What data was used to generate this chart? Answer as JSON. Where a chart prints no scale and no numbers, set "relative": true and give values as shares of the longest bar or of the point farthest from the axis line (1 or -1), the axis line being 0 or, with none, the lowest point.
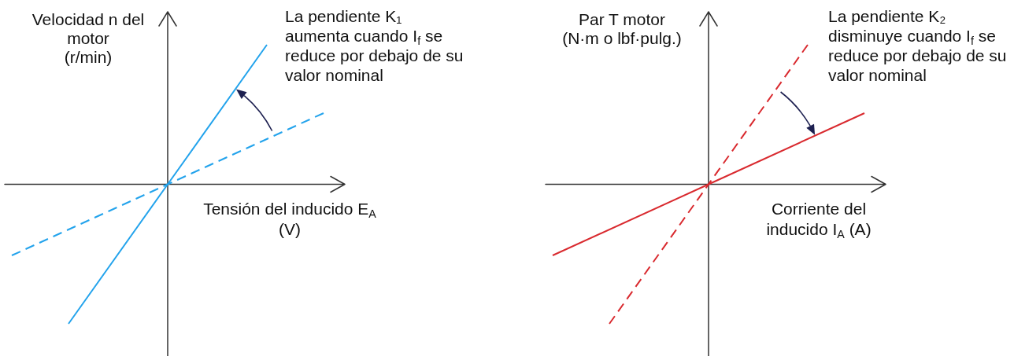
{
  "chart_data": [
    {
      "type": "line",
      "relative": true,
      "tick_labels": false,
      "ylabel": "Velocidad n del\nmotor\n(r/min)",
      "xlabel": "Tensión del inducido E$_{A}$\n(V)",
      "annotations": [
        "La pendiente K₁\naumenta cuando I$_{f}$ se\nreduce por debajo de su\nvalor nominal"
      ],
      "categories": [
        null,
        null,
        null,
        null,
        null,
        null,
        null,
        null,
        null,
        null,
        null,
        null,
        null,
        null,
        null,
        null,
        null,
        null,
        null,
        null,
        null,
        null,
        null,
        null
      ],
      "series": [
        {
          "color": "#23a3ec",
          "line_style": "solid",
          "values": [
            null,
            null,
            null,
            null,
            -1,
            null,
            null,
            null,
            null,
            null,
            null,
            0,
            null,
            null,
            null,
            null,
            null,
            null,
            1,
            null,
            null,
            null,
            null,
            null
          ]
        },
        {
          "color": "#23a3ec",
          "line_style": "dashed",
          "values": [
            -0.51,
            null,
            null,
            null,
            null,
            null,
            null,
            null,
            null,
            null,
            null,
            0,
            null,
            null,
            null,
            null,
            null,
            null,
            null,
            null,
            null,
            null,
            0.51,
            null
          ]
        }
      ]
    },
    {
      "type": "line",
      "relative": true,
      "tick_labels": false,
      "ylabel": "Par T motor\n(N·m o lbf·pulg.)",
      "xlabel": "Corriente del\ninducido I$_{A}$ (A)",
      "annotations": [
        "La pendiente K₂\ndisminuye cuando I$_{f}$ se\nreduce por debajo de su\nvalor nominal"
      ],
      "categories": [
        null,
        null,
        null,
        null,
        null,
        null,
        null,
        null,
        null,
        null,
        null,
        null,
        null,
        null,
        null,
        null,
        null,
        null,
        null,
        null,
        null,
        null,
        null,
        null
      ],
      "series": [
        {
          "color": "#d92a2f",
          "line_style": "solid",
          "values": [
            -0.51,
            null,
            null,
            null,
            null,
            null,
            null,
            null,
            null,
            null,
            null,
            0,
            null,
            null,
            null,
            null,
            null,
            null,
            null,
            null,
            null,
            null,
            0.51,
            null
          ]
        },
        {
          "color": "#d92a2f",
          "line_style": "dashed",
          "values": [
            null,
            null,
            null,
            null,
            -1,
            null,
            null,
            null,
            null,
            null,
            null,
            0,
            null,
            null,
            null,
            null,
            null,
            null,
            1,
            null,
            null,
            null,
            null,
            null
          ]
        }
      ]
    }
  ]
}
